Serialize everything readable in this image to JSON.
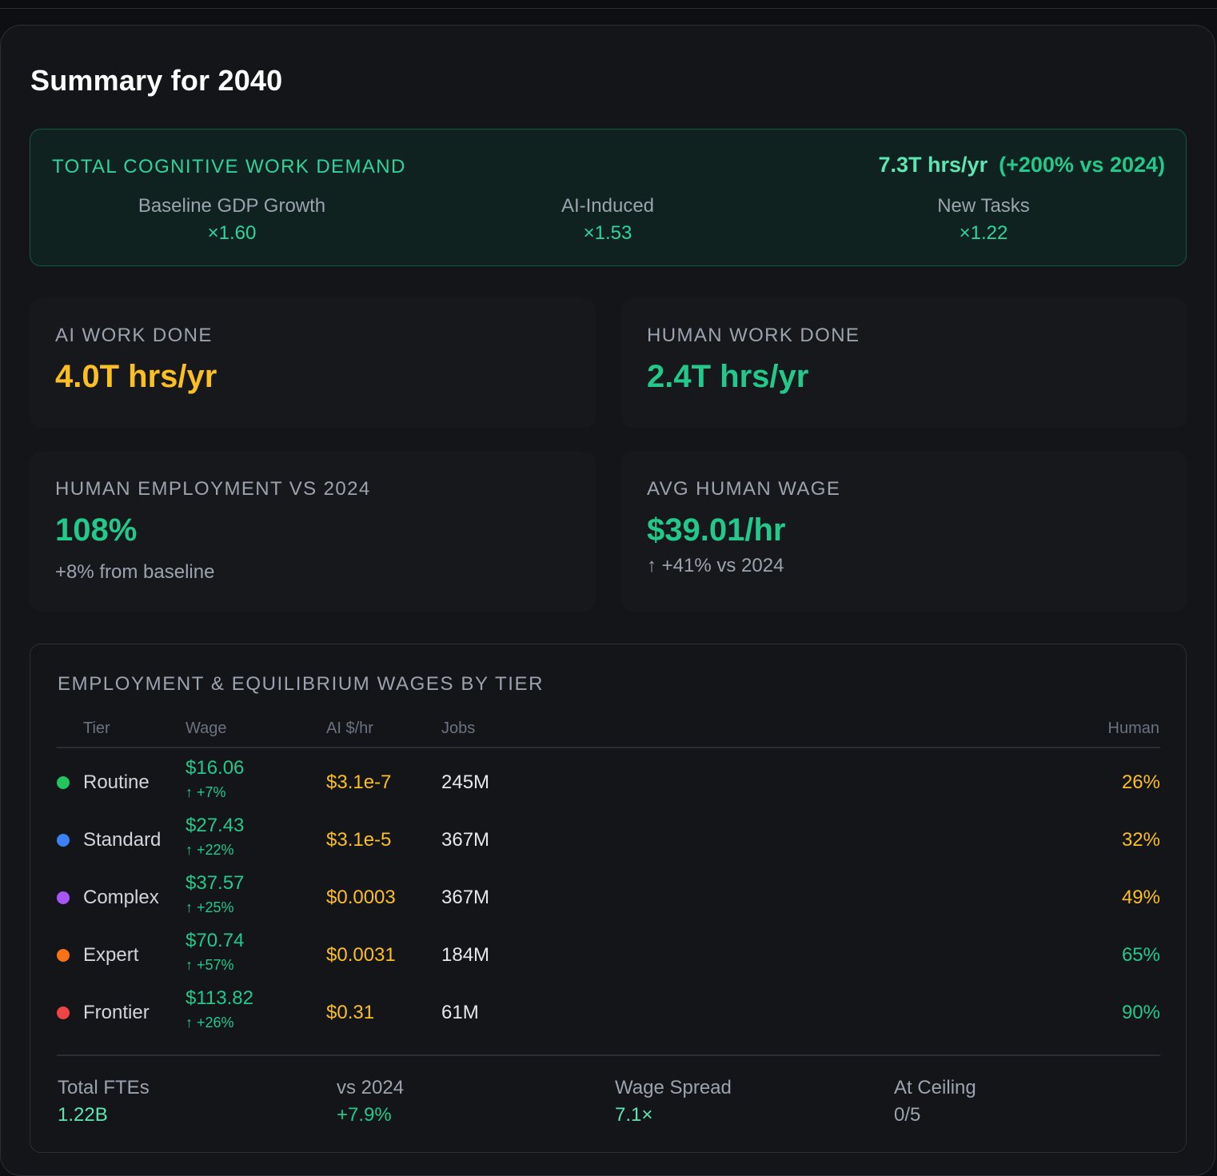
{
  "title": "Summary for 2040",
  "demand": {
    "label": "TOTAL COGNITIVE WORK DEMAND",
    "value": "7.3T hrs/yr",
    "delta": "(+200% vs 2024)",
    "factors": [
      {
        "label": "Baseline GDP Growth",
        "value": "×1.60"
      },
      {
        "label": "AI-Induced",
        "value": "×1.53"
      },
      {
        "label": "New Tasks",
        "value": "×1.22"
      }
    ]
  },
  "cards": {
    "ai_work": {
      "label": "AI WORK DONE",
      "value": "4.0T hrs/yr"
    },
    "human_work": {
      "label": "HUMAN WORK DONE",
      "value": "2.4T hrs/yr"
    },
    "employment": {
      "label": "HUMAN EMPLOYMENT VS 2024",
      "value": "108%",
      "sub": "+8% from baseline"
    },
    "wage": {
      "label": "AVG HUMAN WAGE",
      "value": "$39.01/hr",
      "sub": "↑ +41% vs 2024"
    }
  },
  "tiers": {
    "title": "EMPLOYMENT & EQUILIBRIUM WAGES BY TIER",
    "columns": {
      "tier": "Tier",
      "wage": "Wage",
      "ai": "AI $/hr",
      "jobs": "Jobs",
      "human": "Human"
    },
    "rows": [
      {
        "tier": "Routine",
        "wage": "$16.06",
        "change": "↑ +7%",
        "ai": "$3.1e-7",
        "jobs": "245M",
        "human": "26%",
        "dot_color": "#22c55e",
        "human_color": "#fbbf24"
      },
      {
        "tier": "Standard",
        "wage": "$27.43",
        "change": "↑ +22%",
        "ai": "$3.1e-5",
        "jobs": "367M",
        "human": "32%",
        "dot_color": "#3b82f6",
        "human_color": "#fbbf24"
      },
      {
        "tier": "Complex",
        "wage": "$37.57",
        "change": "↑ +25%",
        "ai": "$0.0003",
        "jobs": "367M",
        "human": "49%",
        "dot_color": "#a855f7",
        "human_color": "#fbbf24"
      },
      {
        "tier": "Expert",
        "wage": "$70.74",
        "change": "↑ +57%",
        "ai": "$0.0031",
        "jobs": "184M",
        "human": "65%",
        "dot_color": "#f97316",
        "human_color": "#22c98a"
      },
      {
        "tier": "Frontier",
        "wage": "$113.82",
        "change": "↑ +26%",
        "ai": "$0.31",
        "jobs": "61M",
        "human": "90%",
        "dot_color": "#ef4444",
        "human_color": "#22c98a"
      }
    ],
    "footer": [
      {
        "label": "Total FTEs",
        "value": "1.22B",
        "color": "#5ee6b2"
      },
      {
        "label": "vs 2024",
        "value": "+7.9%",
        "color": "#22c98a"
      },
      {
        "label": "Wage Spread",
        "value": "7.1×",
        "color": "#5ee6b2"
      },
      {
        "label": "At Ceiling",
        "value": "0/5",
        "color": "#9ca3af"
      }
    ]
  }
}
